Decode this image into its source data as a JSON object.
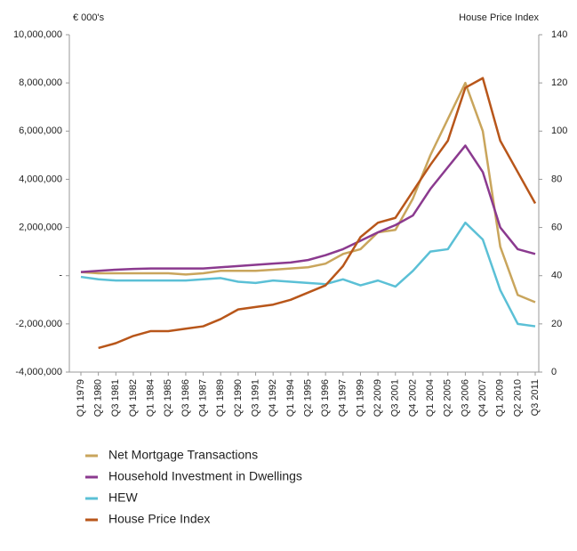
{
  "chart_data": {
    "type": "line",
    "y_label": "€ 000's",
    "y2_label": "House Price Index",
    "categories": [
      "Q1 1979",
      "Q2 1980",
      "Q3 1981",
      "Q4 1982",
      "Q1 1984",
      "Q2 1985",
      "Q3 1986",
      "Q4 1987",
      "Q1 1989",
      "Q2 1990",
      "Q3 1991",
      "Q4 1992",
      "Q1 1994",
      "Q2 1995",
      "Q3 1996",
      "Q4 1997",
      "Q1 1999",
      "Q2 2009",
      "Q3 2001",
      "Q4 2002",
      "Q1 2004",
      "Q2 2005",
      "Q3 2006",
      "Q4 2007",
      "Q1 2009",
      "Q2 2010",
      "Q3 2011"
    ],
    "ylim": [
      -4000000,
      10000000
    ],
    "yticks": [
      {
        "value": -4000000,
        "label": "-4,000,000"
      },
      {
        "value": -2000000,
        "label": "-2,000,000"
      },
      {
        "value": 0,
        "label": "-"
      },
      {
        "value": 2000000,
        "label": "2,000,000"
      },
      {
        "value": 4000000,
        "label": "4,000,000"
      },
      {
        "value": 6000000,
        "label": "6,000,000"
      },
      {
        "value": 8000000,
        "label": "8,000,000"
      },
      {
        "value": 10000000,
        "label": "10,000,000"
      }
    ],
    "y2lim": [
      0,
      140
    ],
    "y2ticks": [
      0,
      20,
      40,
      60,
      80,
      100,
      120,
      140
    ],
    "series": [
      {
        "name": "Net Mortgage Transactions",
        "color": "#c9a55c",
        "values": [
          150000,
          100000,
          100000,
          100000,
          100000,
          100000,
          50000,
          100000,
          200000,
          200000,
          200000,
          250000,
          300000,
          350000,
          500000,
          900000,
          1100000,
          1800000,
          1900000,
          3200000,
          5000000,
          6500000,
          8000000,
          6000000,
          1200000,
          -800000,
          -1100000
        ]
      },
      {
        "name": "Household Investment in Dwellings",
        "color": "#8b3a8f",
        "values": [
          150000,
          200000,
          250000,
          280000,
          300000,
          300000,
          300000,
          300000,
          350000,
          400000,
          450000,
          500000,
          550000,
          650000,
          850000,
          1100000,
          1450000,
          1800000,
          2100000,
          2500000,
          3600000,
          4500000,
          5400000,
          4300000,
          2000000,
          1100000,
          900000
        ]
      },
      {
        "name": "HEW",
        "color": "#5bc0d6",
        "values": [
          -50000,
          -150000,
          -200000,
          -200000,
          -200000,
          -200000,
          -200000,
          -150000,
          -100000,
          -250000,
          -300000,
          -200000,
          -250000,
          -300000,
          -350000,
          -150000,
          -400000,
          -200000,
          -450000,
          200000,
          1000000,
          1100000,
          2200000,
          1500000,
          -600000,
          -2000000,
          -2100000
        ]
      },
      {
        "name": "House Price Index",
        "color": "#b8561a",
        "axis": "y2",
        "values": [
          null,
          10,
          12,
          15,
          17,
          17,
          18,
          19,
          22,
          26,
          27,
          28,
          30,
          33,
          36,
          44,
          56,
          62,
          64,
          75,
          86,
          96,
          118,
          122,
          96,
          83,
          70
        ]
      }
    ]
  }
}
